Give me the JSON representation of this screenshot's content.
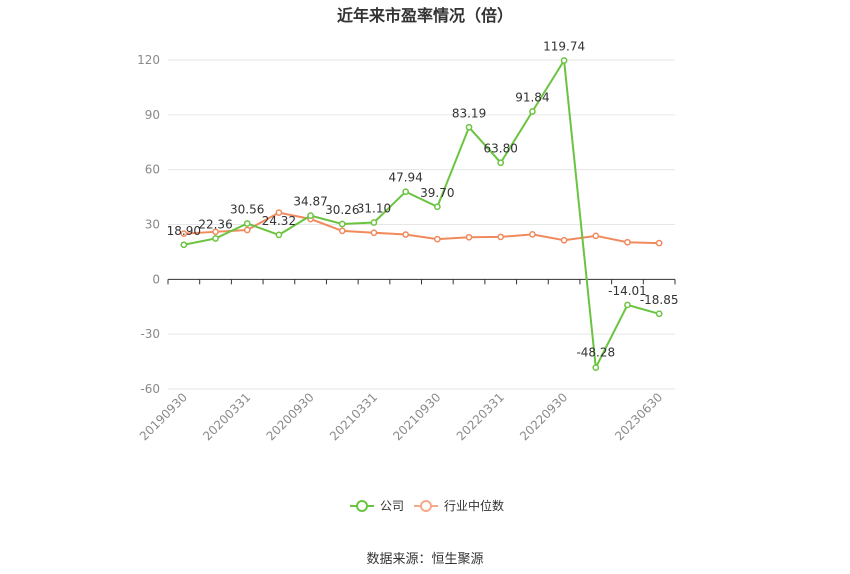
{
  "title": "近年来市盈率情况（倍）",
  "source": "数据来源：恒生聚源",
  "colors": {
    "company": "#6ac440",
    "industry": "#f08a5d",
    "grid": "#e6e6e6",
    "axis": "#333333"
  },
  "chart_data": {
    "type": "line",
    "title": "近年来市盈率情况（倍）",
    "ylim": [
      -60,
      120
    ],
    "yticks": [
      -60,
      -30,
      0,
      30,
      60,
      90,
      120
    ],
    "grid": true,
    "legend_position": "bottom-center",
    "x_tick_labels": [
      "20190930",
      "20200331",
      "20200930",
      "20210331",
      "20210930",
      "20220331",
      "20220930",
      "20230630"
    ],
    "x": [
      "20190930",
      "20191231",
      "20200331",
      "20200630",
      "20200930",
      "20201231",
      "20210331",
      "20210630",
      "20210930",
      "20211231",
      "20220331",
      "20220630",
      "20220930",
      "20221231",
      "20230331",
      "20230630"
    ],
    "series": [
      {
        "name": "公司",
        "values": [
          18.9,
          22.36,
          30.56,
          24.32,
          34.87,
          30.26,
          31.1,
          47.94,
          39.7,
          83.19,
          63.8,
          91.84,
          119.74,
          -48.28,
          -14.01,
          -18.85
        ],
        "labels": [
          "18.90",
          "22.36",
          "30.56",
          "24.32",
          "34.87",
          "30.26",
          "31.10",
          "47.94",
          "39.70",
          "83.19",
          "63.80",
          "91.84",
          "119.74",
          "-48.28",
          "-14.01",
          "-18.85"
        ]
      },
      {
        "name": "行业中位数",
        "values": [
          25.0,
          26.0,
          27.0,
          36.5,
          33.0,
          26.5,
          25.5,
          24.5,
          22.0,
          23.0,
          23.2,
          24.6,
          21.4,
          23.8,
          20.3,
          19.8
        ]
      }
    ]
  }
}
